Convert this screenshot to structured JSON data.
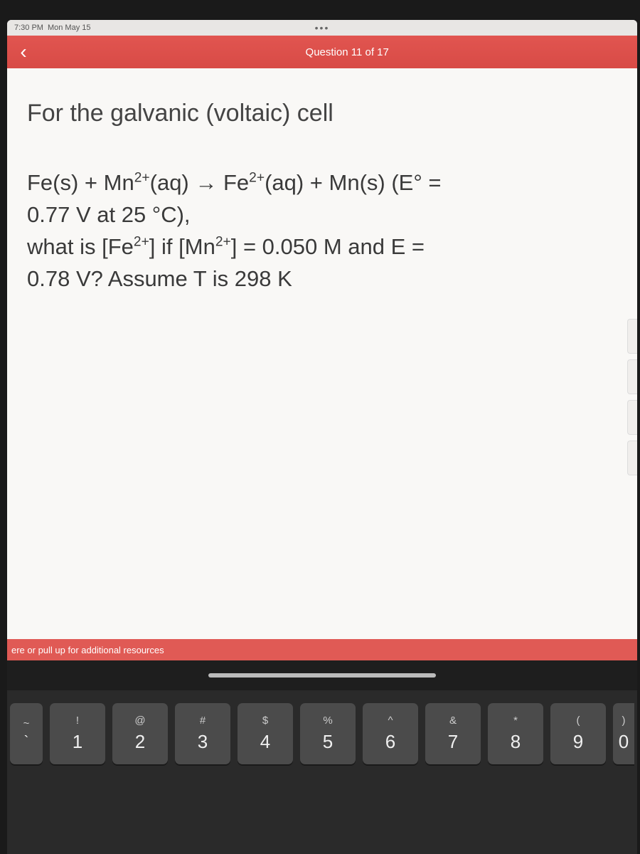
{
  "status": {
    "time": "7:30 PM",
    "date": "Mon May 15",
    "ellipsis": "•••"
  },
  "nav": {
    "back_glyph": "‹",
    "title": "Question 11 of 17"
  },
  "question": {
    "heading": "For the galvanic (voltaic) cell",
    "line1_a": "Fe(s) + Mn",
    "line1_b": "(aq) → Fe",
    "line1_c": "(aq) + Mn(s) (E° =",
    "line2": "0.77 V at 25 °C),",
    "line3_a": "what is [Fe",
    "line3_b": "] if [Mn",
    "line3_c": "] = 0.050 M and E =",
    "line4": "0.78 V? Assume T is 298 K",
    "sup": "2+"
  },
  "resources": {
    "label": "ere or pull up for additional resources"
  },
  "keys": [
    {
      "upper": "~",
      "lower": "`"
    },
    {
      "upper": "!",
      "lower": "1"
    },
    {
      "upper": "@",
      "lower": "2"
    },
    {
      "upper": "#",
      "lower": "3"
    },
    {
      "upper": "$",
      "lower": "4"
    },
    {
      "upper": "%",
      "lower": "5"
    },
    {
      "upper": "^",
      "lower": "6"
    },
    {
      "upper": "&",
      "lower": "7"
    },
    {
      "upper": "*",
      "lower": "8"
    },
    {
      "upper": "(",
      "lower": "9"
    },
    {
      "upper": ")",
      "lower": "0"
    }
  ],
  "colors": {
    "nav_bg": "#d9534f",
    "content_bg": "#f9f8f6",
    "text": "#3a3a3a",
    "key_bg": "#4b4b4b",
    "keyboard_bg": "#2a2a2a"
  }
}
